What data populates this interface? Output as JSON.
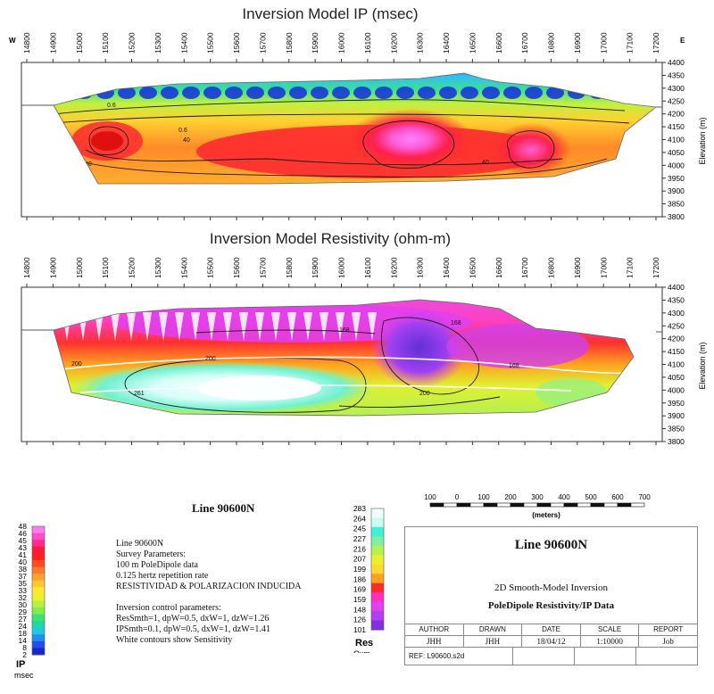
{
  "ip_panel": {
    "title": "Inversion Model IP (msec)",
    "west": "W",
    "east": "E",
    "x_ticks": [
      "14800",
      "14900",
      "15000",
      "15100",
      "15200",
      "15300",
      "15400",
      "15500",
      "15600",
      "15700",
      "15800",
      "15900",
      "16000",
      "16100",
      "16200",
      "16300",
      "16400",
      "16500",
      "16600",
      "16700",
      "16800",
      "16900",
      "17000",
      "17100",
      "17200"
    ],
    "y_ticks": [
      "4400",
      "4350",
      "4300",
      "4250",
      "4200",
      "4150",
      "4100",
      "4050",
      "4000",
      "3950",
      "3900",
      "3850",
      "3800"
    ],
    "y_label": "Elevation (m)",
    "contour_labels": [
      "40",
      "40",
      "40",
      "40",
      "0.6",
      "0.6"
    ]
  },
  "res_panel": {
    "title": "Inversion Model Resistivity (ohm-m)",
    "x_ticks": [
      "14800",
      "14900",
      "15000",
      "15100",
      "15200",
      "15300",
      "15400",
      "15500",
      "15600",
      "15700",
      "15800",
      "15900",
      "16000",
      "16100",
      "16200",
      "16300",
      "16400",
      "16500",
      "16600",
      "16700",
      "16800",
      "16900",
      "17000",
      "17100",
      "17200"
    ],
    "y_ticks": [
      "4400",
      "4350",
      "4300",
      "4250",
      "4200",
      "4150",
      "4100",
      "4050",
      "4000",
      "3950",
      "3900",
      "3850",
      "3800"
    ],
    "y_label": "Elevation (m)",
    "contour_labels": [
      "168",
      "168",
      "200",
      "261",
      "200",
      "168",
      "200"
    ]
  },
  "ip_legend": {
    "values": [
      "48",
      "46",
      "45",
      "43",
      "41",
      "40",
      "38",
      "37",
      "35",
      "33",
      "32",
      "30",
      "29",
      "27",
      "24",
      "18",
      "14",
      "8",
      "2"
    ],
    "colors": [
      "#ff7cf0",
      "#ff4cc8",
      "#ff2a8a",
      "#ff1a3a",
      "#ff2020",
      "#ff4a20",
      "#ff7a28",
      "#ffa030",
      "#ffc830",
      "#ffe830",
      "#e8f030",
      "#b8f040",
      "#80ec50",
      "#40e070",
      "#20d8a0",
      "#20c8e0",
      "#2090f0",
      "#2050e8",
      "#1828c8"
    ],
    "title": "IP",
    "unit": "msec"
  },
  "res_legend": {
    "values": [
      "283",
      "264",
      "245",
      "227",
      "216",
      "207",
      "199",
      "186",
      "169",
      "159",
      "148",
      "126",
      "101"
    ],
    "colors": [
      "#f0ffff",
      "#c8fff0",
      "#40f0d8",
      "#80f0a0",
      "#b8f050",
      "#e8f030",
      "#ffd830",
      "#ffa020",
      "#ff2a2a",
      "#ff30c0",
      "#e040f0",
      "#b040f0",
      "#8030e0"
    ],
    "title": "Res",
    "unit": "Oxm"
  },
  "line_heading": "Line 90600N",
  "params_lines": [
    "Line 90600N",
    "Survey Parameters:",
    "100 m PoleDipole data",
    "0.125 hertz repetition rate",
    "RESISTIVIDAD & POLARIZACION INDUCIDA",
    "",
    "Inversion control parameters:",
    "ResSmth=1, dpW=0.5, dxW=1, dzW=1.26",
    "IPSmth=0.1, dpW=0.5, dxW=1, dzW=1.41",
    "White contours show Sensitivity"
  ],
  "scale_bar": {
    "labels": [
      "100",
      "0",
      "100",
      "200",
      "300",
      "400",
      "500",
      "600",
      "700"
    ],
    "unit": "(meters)"
  },
  "title_block": {
    "title": "Line 90600N",
    "subtitle1": "2D Smooth-Model Inversion",
    "subtitle2": "PoleDipole Resistivity/IP Data",
    "headers": [
      "AUTHOR",
      "DRAWN",
      "DATE",
      "SCALE",
      "REPORT"
    ],
    "values": [
      "JHH",
      "JHH",
      "18/04/12",
      "1:10000",
      "Job"
    ],
    "ref": "REF: L90600.s2d"
  }
}
